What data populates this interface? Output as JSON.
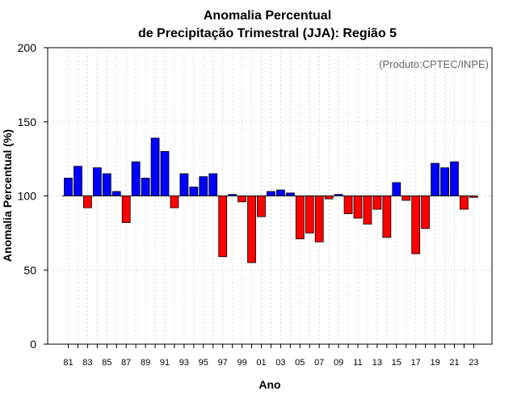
{
  "chart_data": {
    "type": "bar",
    "title": "Anomalia Percentual",
    "subtitle": "de Precipitação Trimestral (JJA): Região 5",
    "xlabel": "Ano",
    "ylabel": "Anomalia Percentual (%)",
    "annotation": "(Produto:CPTEC/INPE)",
    "ylim": [
      0,
      200
    ],
    "yticks": [
      0,
      50,
      100,
      150,
      200
    ],
    "baseline": 100,
    "grid": true,
    "colors": {
      "above": "#0000ff",
      "below": "#ff0000",
      "outline": "#000000",
      "grid": "#cccccc"
    },
    "categories": [
      "1981",
      "1982",
      "1983",
      "1984",
      "1985",
      "1986",
      "1987",
      "1988",
      "1989",
      "1990",
      "1991",
      "1992",
      "1993",
      "1994",
      "1995",
      "1996",
      "1997",
      "1998",
      "1999",
      "2000",
      "2001",
      "2002",
      "2003",
      "2004",
      "2005",
      "2006",
      "2007",
      "2008",
      "2009",
      "2010",
      "2011",
      "2012",
      "2013",
      "2014",
      "2015",
      "2016",
      "2017",
      "2018",
      "2019",
      "2020",
      "2021",
      "2022",
      "2023"
    ],
    "values": [
      112,
      120,
      92,
      119,
      115,
      103,
      82,
      123,
      112,
      139,
      130,
      92,
      115,
      106,
      113,
      115,
      59,
      101,
      96,
      55,
      86,
      103,
      104,
      102,
      71,
      75,
      69,
      98,
      101,
      88,
      85,
      81,
      91,
      72,
      109,
      97,
      61,
      78,
      122,
      119,
      123,
      91,
      99
    ],
    "xtick_labels": [
      "81",
      "83",
      "85",
      "87",
      "89",
      "91",
      "93",
      "95",
      "97",
      "99",
      "01",
      "03",
      "05",
      "07",
      "09",
      "11",
      "13",
      "15",
      "17",
      "19",
      "21",
      "23"
    ]
  }
}
